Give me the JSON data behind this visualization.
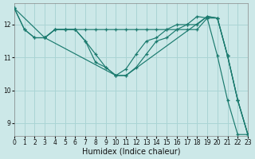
{
  "background_color": "#cce8e8",
  "grid_color": "#aad4d4",
  "line_color": "#1a7a6e",
  "xlabel": "Humidex (Indice chaleur)",
  "xlim": [
    0,
    23
  ],
  "ylim": [
    8.6,
    12.65
  ],
  "yticks": [
    9,
    10,
    11,
    12
  ],
  "xticks": [
    0,
    1,
    2,
    3,
    4,
    5,
    6,
    7,
    8,
    9,
    10,
    11,
    12,
    13,
    14,
    15,
    16,
    17,
    18,
    19,
    20,
    21,
    22,
    23
  ],
  "lines": [
    {
      "x": [
        0,
        1,
        2,
        3,
        4,
        5,
        6,
        7,
        8,
        9,
        10,
        11,
        12,
        13,
        14,
        15,
        16,
        17,
        18,
        19,
        20,
        21,
        22,
        23
      ],
      "y": [
        12.5,
        11.85,
        11.6,
        11.6,
        11.85,
        11.85,
        11.85,
        11.85,
        11.85,
        11.85,
        11.85,
        11.85,
        11.85,
        11.85,
        11.85,
        11.85,
        11.85,
        11.85,
        11.85,
        12.2,
        12.2,
        11.05,
        9.7,
        8.65
      ]
    },
    {
      "x": [
        0,
        1,
        2,
        3,
        4,
        5,
        6,
        7,
        8,
        9,
        10,
        11,
        12,
        13,
        14,
        15,
        16,
        17,
        18,
        19,
        20,
        21,
        22,
        23
      ],
      "y": [
        12.5,
        11.85,
        11.6,
        11.6,
        11.85,
        11.85,
        11.85,
        11.5,
        11.1,
        10.7,
        10.45,
        10.45,
        10.7,
        11.1,
        11.5,
        11.6,
        11.85,
        12.0,
        12.0,
        12.25,
        12.2,
        11.05,
        9.7,
        8.65
      ]
    },
    {
      "x": [
        3,
        4,
        5,
        6,
        7,
        8,
        9,
        10,
        11,
        12,
        13,
        14,
        15,
        16,
        17,
        18,
        19,
        20,
        21,
        22,
        23
      ],
      "y": [
        11.6,
        11.85,
        11.85,
        11.85,
        11.5,
        10.85,
        10.7,
        10.45,
        10.65,
        11.1,
        11.5,
        11.6,
        11.85,
        12.0,
        12.0,
        12.25,
        12.2,
        11.05,
        9.7,
        8.65,
        8.65
      ]
    },
    {
      "x": [
        0,
        3,
        10,
        11,
        19,
        20,
        21,
        22,
        23
      ],
      "y": [
        12.5,
        11.6,
        10.45,
        10.45,
        12.25,
        12.2,
        11.05,
        9.7,
        8.65
      ]
    }
  ]
}
